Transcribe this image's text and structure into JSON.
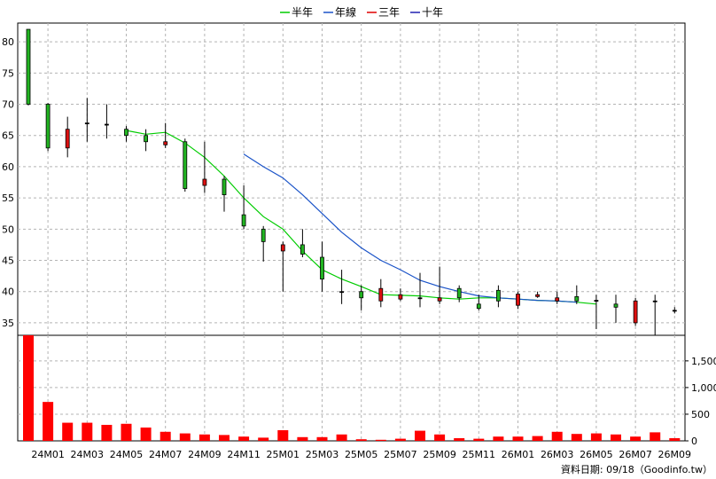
{
  "chart_data": {
    "type": "candlestick",
    "legend": [
      {
        "name": "半年",
        "color": "#00cc00"
      },
      {
        "name": "年線",
        "color": "#1a53c8"
      },
      {
        "name": "三年",
        "color": "#e00000"
      },
      {
        "name": "十年",
        "color": "#2020b0"
      }
    ],
    "legend_position": "top-center",
    "grid": true,
    "price_axis": {
      "ticks": [
        35,
        40,
        45,
        50,
        55,
        60,
        65,
        70,
        75,
        80
      ],
      "ylim": [
        33,
        83
      ]
    },
    "volume_axis": {
      "ticks": [
        "0",
        "500",
        "1,000",
        "1,500"
      ],
      "ylim": [
        0,
        1980
      ]
    },
    "x_tick_labels": [
      "24M01",
      "24M03",
      "24M05",
      "24M07",
      "24M09",
      "24M11",
      "25M01",
      "25M03",
      "25M05",
      "25M07",
      "25M09",
      "25M11",
      "26M01",
      "26M03",
      "26M05",
      "26M07",
      "26M09"
    ],
    "candles": [
      {
        "x": "23M12",
        "open": 70.0,
        "high": 82.0,
        "low": 69.8,
        "close": 82.0
      },
      {
        "x": "24M01",
        "open": 63.0,
        "high": 70.2,
        "low": 62.5,
        "close": 70.0
      },
      {
        "x": "24M02",
        "open": 66.0,
        "high": 68.0,
        "low": 61.5,
        "close": 63.0
      },
      {
        "x": "24M03",
        "open": 67.0,
        "high": 71.0,
        "low": 64.0,
        "close": 67.0
      },
      {
        "x": "24M04",
        "open": 66.8,
        "high": 70.0,
        "low": 64.5,
        "close": 66.8
      },
      {
        "x": "24M05",
        "open": 65.0,
        "high": 66.5,
        "low": 64.0,
        "close": 66.0
      },
      {
        "x": "24M06",
        "open": 64.0,
        "high": 66.0,
        "low": 62.5,
        "close": 65.0
      },
      {
        "x": "24M07",
        "open": 64.0,
        "high": 67.0,
        "low": 63.0,
        "close": 63.5
      },
      {
        "x": "24M08",
        "open": 56.5,
        "high": 64.5,
        "low": 56.0,
        "close": 64.0
      },
      {
        "x": "24M09",
        "open": 58.0,
        "high": 64.0,
        "low": 55.8,
        "close": 57.0
      },
      {
        "x": "24M10",
        "open": 55.5,
        "high": 58.5,
        "low": 52.8,
        "close": 58.0
      },
      {
        "x": "24M11",
        "open": 50.5,
        "high": 57.0,
        "low": 50.0,
        "close": 52.3
      },
      {
        "x": "24M12",
        "open": 48.0,
        "high": 50.5,
        "low": 44.8,
        "close": 50.0
      },
      {
        "x": "25M01",
        "open": 47.5,
        "high": 48.0,
        "low": 40.0,
        "close": 46.5
      },
      {
        "x": "25M02",
        "open": 46.0,
        "high": 50.0,
        "low": 45.5,
        "close": 47.5
      },
      {
        "x": "25M03",
        "open": 42.0,
        "high": 48.0,
        "low": 40.0,
        "close": 45.5
      },
      {
        "x": "25M04",
        "open": 40.0,
        "high": 43.5,
        "low": 38.0,
        "close": 40.0
      },
      {
        "x": "25M05",
        "open": 39.0,
        "high": 41.0,
        "low": 37.0,
        "close": 40.0
      },
      {
        "x": "25M06",
        "open": 40.5,
        "high": 42.0,
        "low": 37.5,
        "close": 38.5
      },
      {
        "x": "25M07",
        "open": 39.5,
        "high": 40.5,
        "low": 38.5,
        "close": 38.8
      },
      {
        "x": "25M08",
        "open": 39.0,
        "high": 43.0,
        "low": 37.5,
        "close": 39.0
      },
      {
        "x": "25M09",
        "open": 39.0,
        "high": 44.0,
        "low": 38.0,
        "close": 38.5
      },
      {
        "x": "25M10",
        "open": 39.0,
        "high": 41.0,
        "low": 38.3,
        "close": 40.5
      },
      {
        "x": "25M11",
        "open": 37.3,
        "high": 39.5,
        "low": 37.0,
        "close": 38.0
      },
      {
        "x": "25M12",
        "open": 38.5,
        "high": 41.0,
        "low": 37.5,
        "close": 40.2
      },
      {
        "x": "26M01",
        "open": 39.6,
        "high": 40.0,
        "low": 37.2,
        "close": 37.8
      },
      {
        "x": "26M02",
        "open": 39.5,
        "high": 40.0,
        "low": 39.0,
        "close": 39.2
      },
      {
        "x": "26M03",
        "open": 39.0,
        "high": 40.0,
        "low": 38.0,
        "close": 38.5
      },
      {
        "x": "26M04",
        "open": 38.5,
        "high": 41.0,
        "low": 38.0,
        "close": 39.2
      },
      {
        "x": "26M05",
        "open": 38.6,
        "high": 39.5,
        "low": 34.0,
        "close": 38.6
      },
      {
        "x": "26M06",
        "open": 37.5,
        "high": 39.5,
        "low": 35.0,
        "close": 38.0
      },
      {
        "x": "26M07",
        "open": 38.5,
        "high": 39.0,
        "low": 34.5,
        "close": 35.0
      },
      {
        "x": "26M08",
        "open": 38.5,
        "high": 39.5,
        "low": 33.0,
        "close": 38.5
      },
      {
        "x": "26M09",
        "open": 37.0,
        "high": 37.5,
        "low": 36.5,
        "close": 37.0
      }
    ],
    "volume": [
      1980,
      730,
      340,
      340,
      300,
      320,
      250,
      170,
      140,
      120,
      110,
      80,
      60,
      200,
      70,
      70,
      120,
      30,
      20,
      40,
      190,
      120,
      50,
      40,
      80,
      80,
      90,
      170,
      130,
      140,
      120,
      80,
      160,
      50
    ],
    "series": [
      {
        "name": "半年",
        "start": 5,
        "values": [
          65.8,
          65.2,
          65.5,
          63.8,
          61.5,
          58.5,
          55.0,
          52.0,
          50.0,
          46.5,
          43.5,
          42.0,
          40.8,
          39.5,
          39.4,
          39.3,
          39.0,
          38.8,
          39.0,
          39.0,
          38.8,
          38.6,
          38.5,
          38.3,
          38.0
        ]
      },
      {
        "name": "年線",
        "start": 11,
        "values": [
          62.0,
          60.0,
          58.2,
          55.5,
          52.5,
          49.5,
          47.0,
          45.0,
          43.5,
          41.8,
          40.8,
          40.0,
          39.3,
          39.0,
          38.8,
          38.6,
          38.5,
          38.3
        ]
      }
    ]
  },
  "footer": "資料日期: 09/18（Goodinfo.tw）"
}
